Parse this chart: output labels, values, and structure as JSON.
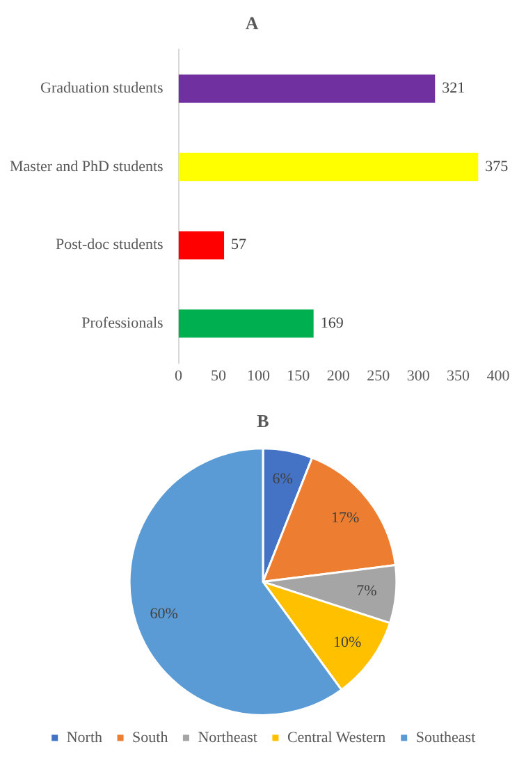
{
  "chart_data": [
    {
      "type": "bar",
      "title": "A",
      "orientation": "horizontal",
      "categories": [
        "Graduation students",
        "Master and PhD students",
        "Post-doc students",
        "Professionals"
      ],
      "values": [
        321,
        375,
        57,
        169
      ],
      "colors": [
        "#7030a0",
        "#ffff00",
        "#ff0000",
        "#00b050"
      ],
      "xlim": [
        0,
        400
      ],
      "xticks": [
        0,
        50,
        100,
        150,
        200,
        250,
        300,
        350,
        400
      ],
      "grid": false,
      "legend": false,
      "data_labels": true
    },
    {
      "type": "pie",
      "title": "B",
      "categories": [
        "North",
        "South",
        "Northeast",
        "Central Western",
        "Southeast"
      ],
      "values": [
        6,
        17,
        7,
        10,
        60
      ],
      "colors": [
        "#4472c4",
        "#ed7d31",
        "#a5a5a5",
        "#ffc000",
        "#5b9bd5"
      ],
      "value_labels": [
        "6%",
        "17%",
        "7%",
        "10%",
        "60%"
      ],
      "legend": "bottom"
    }
  ]
}
